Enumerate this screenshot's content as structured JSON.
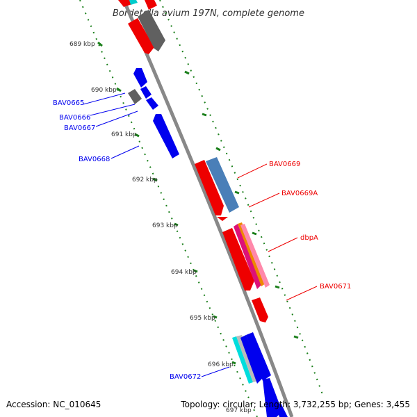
{
  "map": {
    "title": "Bordetella avium 197N, complete genome",
    "accession": "Accession: NC_010645",
    "summary": "Topology: circular; Length: 3,732,255 bp; Genes: 3,455"
  },
  "ticks": [
    "689 kbp",
    "690 kbp",
    "691 kbp",
    "692 kbp",
    "693 kbp",
    "694 kbp",
    "695 kbp",
    "696 kbp",
    "697 kbp"
  ],
  "genes": {
    "bav0665": "BAV0665",
    "bav0666": "BAV0666",
    "bav0667": "BAV0667",
    "bav0668": "BAV0668",
    "bav0669": "BAV0669",
    "bav0669a": "BAV0669A",
    "dbpa": "dbpA",
    "bav0671": "BAV0671",
    "bav0672": "BAV0672"
  },
  "colors": {
    "reverse_strand_gene": "#0000ee",
    "forward_strand_gene": "#ee0000",
    "backbone": "#888888",
    "tick": "#1a7f1a",
    "pseudo_gene": "#606060",
    "rna_feature": "#4a7fb8"
  }
}
